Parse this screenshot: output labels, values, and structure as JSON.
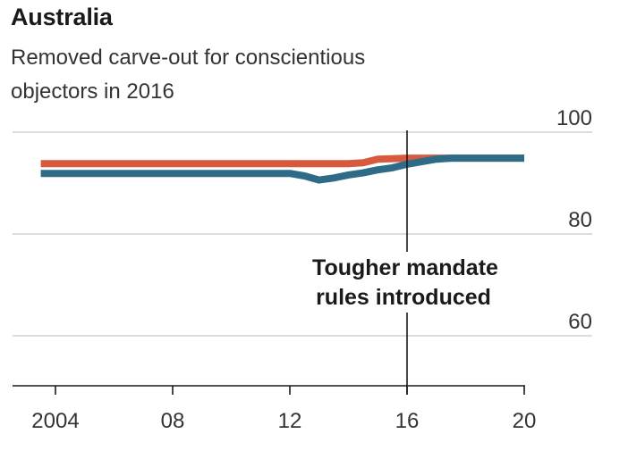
{
  "header": {
    "title": "Australia",
    "subtitle": "Removed carve-out for conscientious objectors in 2016"
  },
  "chart_data": {
    "type": "line",
    "title": "Australia",
    "subtitle": "Removed carve-out for conscientious objectors in 2016",
    "xlim": [
      2002.7,
      2021.4
    ],
    "ylim": [
      40,
      100
    ],
    "x_ticks": [
      2004,
      2008,
      2012,
      2016,
      2020
    ],
    "x_tick_labels": [
      "2004",
      "08",
      "12",
      "16",
      "20"
    ],
    "y_ticks": [
      60,
      80,
      100
    ],
    "y_tick_labels": [
      "60",
      "80",
      "100"
    ],
    "grid": true,
    "annotation": {
      "x": 2016,
      "text_lines": [
        "Tougher mandate",
        "rules introduced"
      ]
    },
    "series": [
      {
        "color": "#d75a3f",
        "x": [
          2003.5,
          2004,
          2006,
          2008,
          2010,
          2012,
          2013,
          2014,
          2014.5,
          2015,
          2016,
          2017,
          2018,
          2019,
          2020
        ],
        "values": [
          93.8,
          93.8,
          93.8,
          93.8,
          93.8,
          93.8,
          93.8,
          93.8,
          94.0,
          94.7,
          94.9,
          94.9,
          94.9,
          94.9,
          94.9
        ]
      },
      {
        "color": "#2e6b86",
        "x": [
          2003.5,
          2004,
          2006,
          2008,
          2010,
          2012,
          2012.5,
          2013,
          2013.5,
          2014,
          2014.5,
          2015,
          2015.5,
          2016,
          2016.5,
          2017,
          2017.5,
          2018,
          2019,
          2020
        ],
        "values": [
          91.9,
          91.9,
          91.9,
          91.9,
          91.9,
          91.9,
          91.4,
          90.6,
          91.0,
          91.6,
          92.0,
          92.6,
          93.0,
          93.7,
          94.2,
          94.7,
          94.9,
          94.9,
          94.9,
          94.9
        ]
      }
    ]
  }
}
